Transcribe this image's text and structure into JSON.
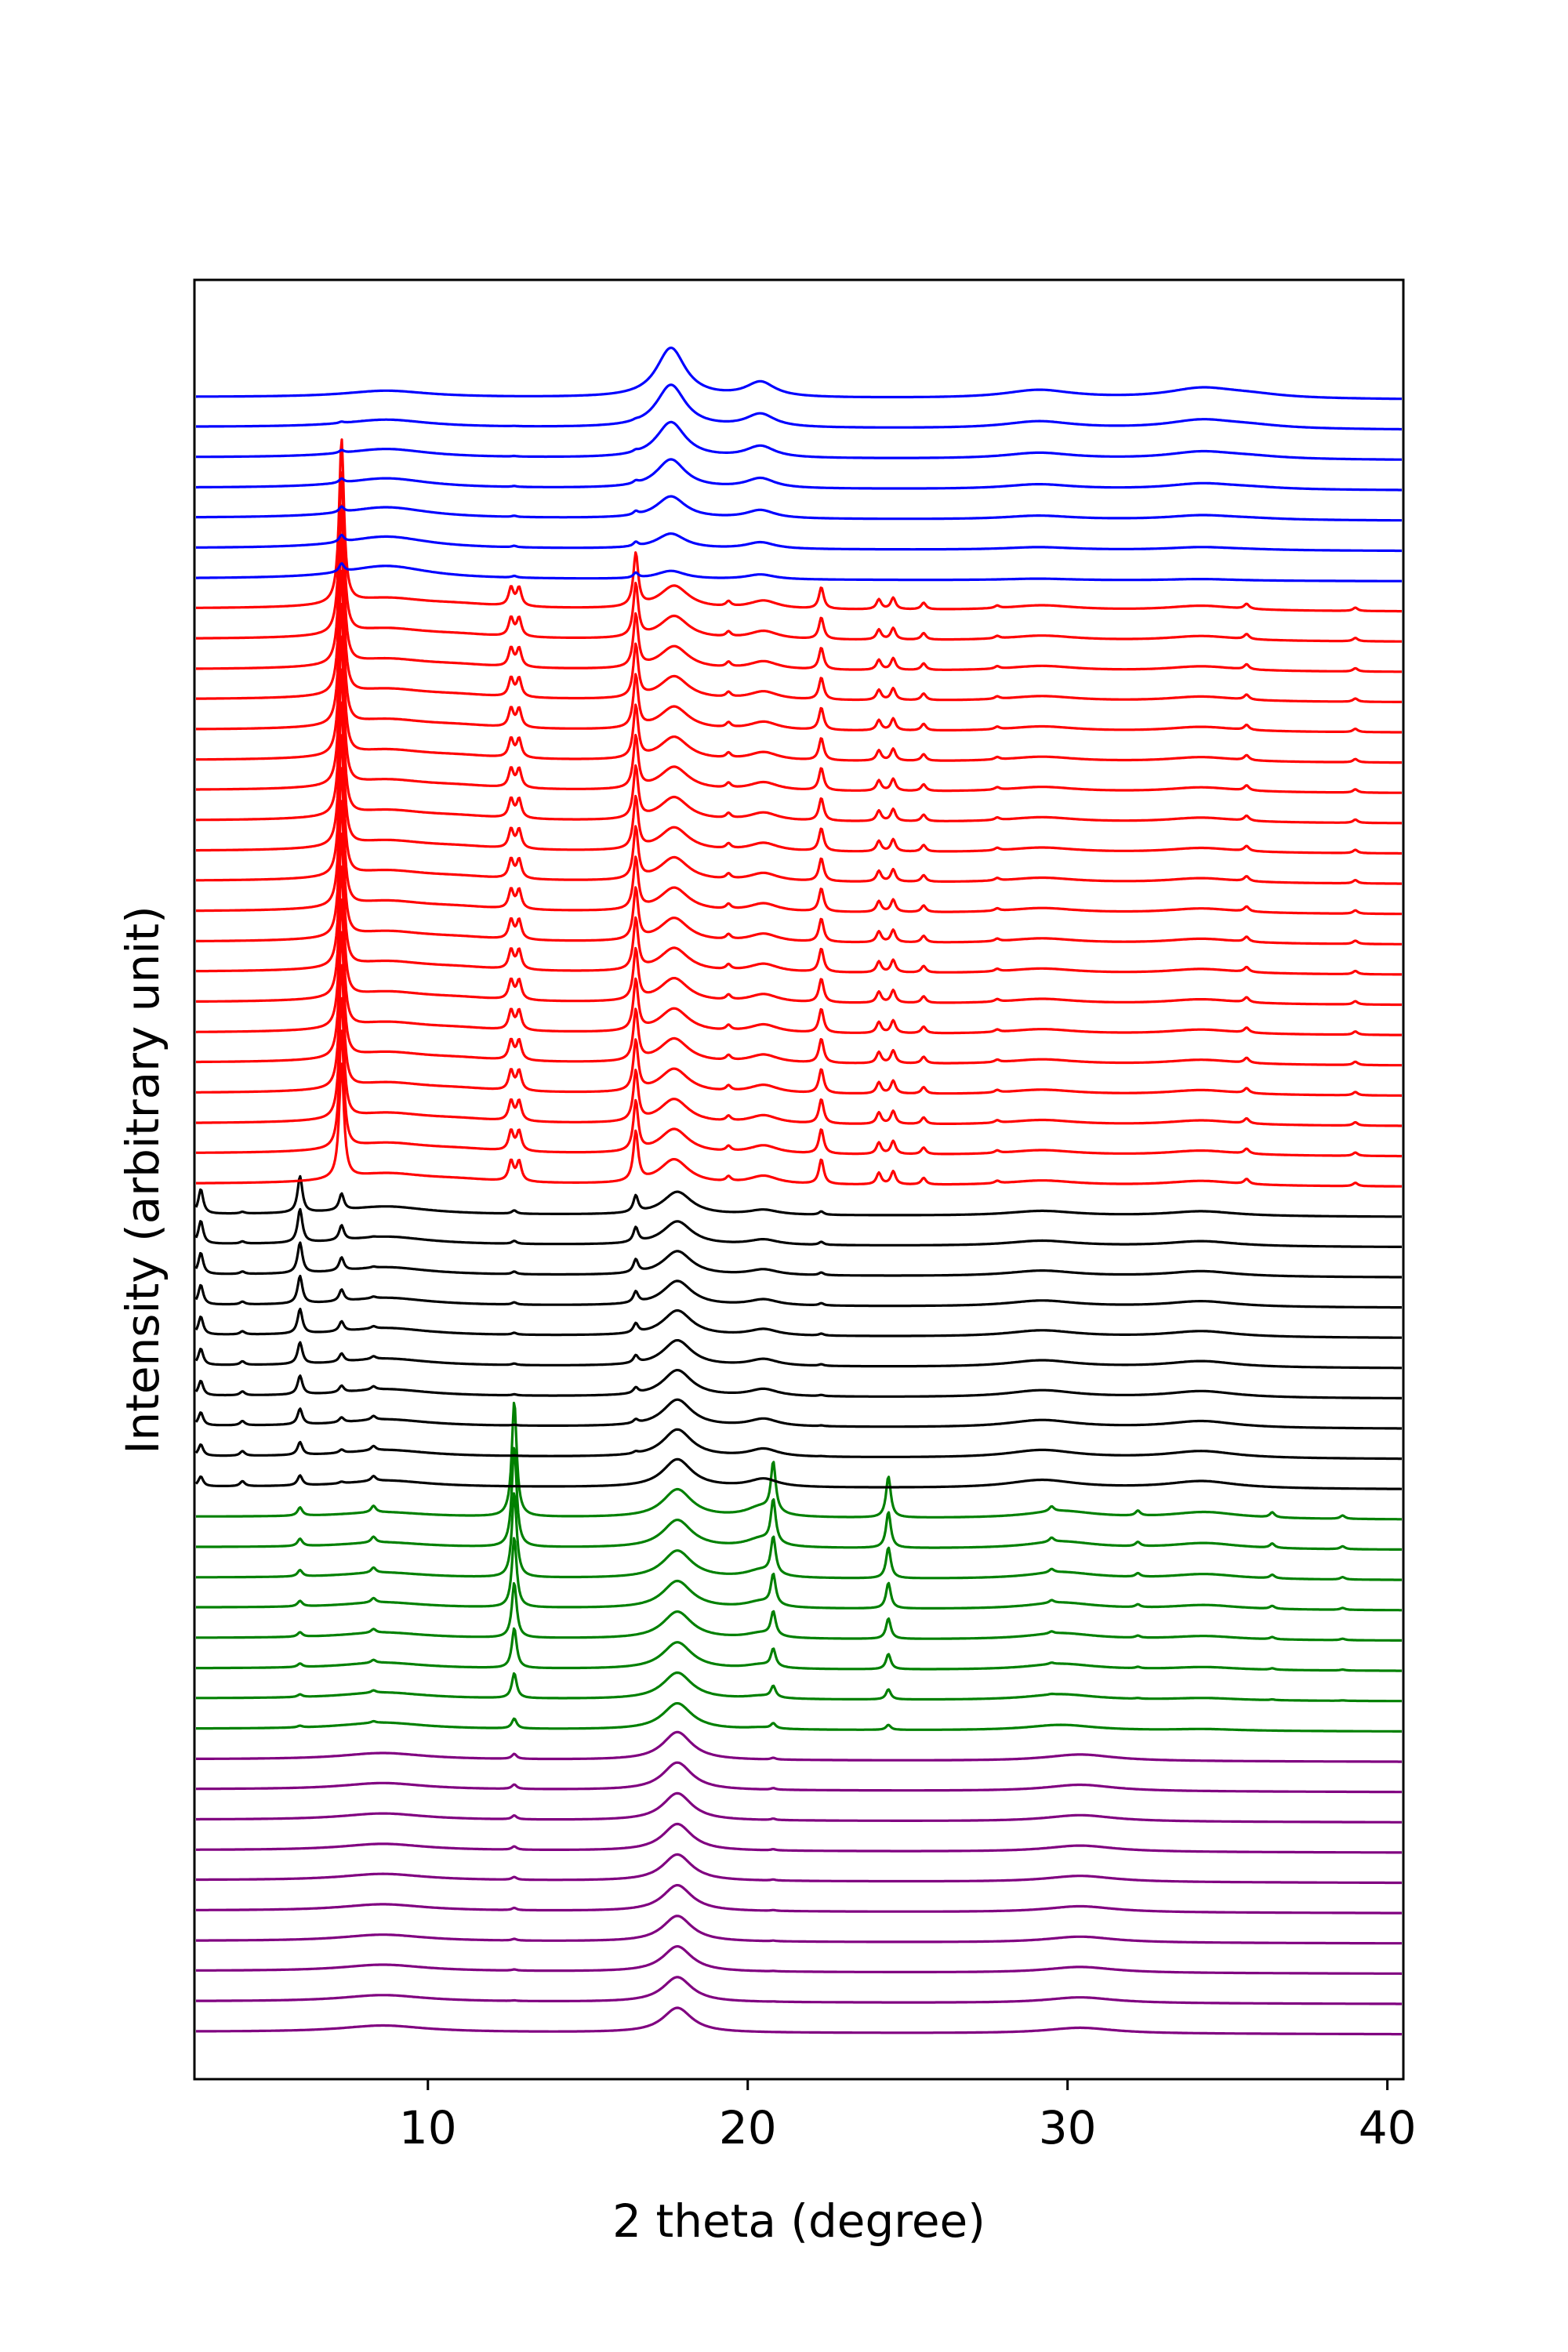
{
  "chart_data": {
    "type": "line",
    "title": "",
    "xlabel": "2 theta (degree)",
    "ylabel": "Intensity (arbitrary unit)",
    "xlim": [
      2.7,
      40.5
    ],
    "xticks": [
      10,
      20,
      30,
      40
    ],
    "yticks": [],
    "grid": false,
    "legend": "none",
    "stacking": "vertically offset waterfall, bottom (purple) to top (blue)",
    "colors": {
      "purple": "#800080",
      "green": "#008000",
      "black": "#000000",
      "red": "#ff0000",
      "blue": "#0000ff"
    },
    "groups": [
      {
        "color": "purple",
        "count": 10,
        "peaks": [
          {
            "x": 8.6,
            "h": [
              0.4,
              0.4
            ]
          },
          {
            "x": 17.8,
            "h": [
              1.5,
              1.7
            ]
          },
          {
            "x": 30.4,
            "h": [
              0.35,
              0.4
            ]
          }
        ],
        "sharp_peaks": [
          {
            "x": 12.7,
            "h": [
              0,
              0.3
            ]
          },
          {
            "x": 20.8,
            "h": [
              0,
              0.1
            ]
          }
        ]
      },
      {
        "color": "green",
        "count": 8,
        "peaks": [
          {
            "x": 8.6,
            "h": [
              0.4,
              0.3
            ]
          },
          {
            "x": 17.8,
            "h": [
              1.6,
              1.7
            ]
          },
          {
            "x": 29.8,
            "h": [
              0.35,
              0.45
            ]
          },
          {
            "x": 34.3,
            "h": [
              0.1,
              0.4
            ]
          },
          {
            "x": 20.4,
            "h": [
              0.1,
              0.6
            ]
          }
        ],
        "sharp_peaks": [
          {
            "x": 12.7,
            "h": [
              0.6,
              7.0
            ]
          },
          {
            "x": 20.8,
            "h": [
              0.3,
              3.0
            ]
          },
          {
            "x": 24.4,
            "h": [
              0.3,
              2.5
            ]
          },
          {
            "x": 6.0,
            "h": [
              0.1,
              0.5
            ]
          },
          {
            "x": 8.3,
            "h": [
              0.1,
              0.4
            ]
          },
          {
            "x": 29.5,
            "h": [
              0.0,
              0.3
            ]
          },
          {
            "x": 32.2,
            "h": [
              0.0,
              0.3
            ]
          },
          {
            "x": 36.4,
            "h": [
              0.0,
              0.3
            ]
          },
          {
            "x": 38.6,
            "h": [
              0.0,
              0.2
            ]
          }
        ]
      },
      {
        "color": "black",
        "count": 10,
        "peaks": [
          {
            "x": 8.7,
            "h": [
              0.4,
              0.5
            ]
          },
          {
            "x": 17.8,
            "h": [
              1.7,
              1.4
            ]
          },
          {
            "x": 20.5,
            "h": [
              0.5,
              0.3
            ]
          },
          {
            "x": 29.2,
            "h": [
              0.5,
              0.3
            ]
          },
          {
            "x": 34.2,
            "h": [
              0.45,
              0.3
            ]
          }
        ],
        "sharp_peaks": [
          {
            "x": 6.0,
            "h": [
              0.6,
              2.2
            ]
          },
          {
            "x": 2.9,
            "h": [
              0.6,
              1.5
            ]
          },
          {
            "x": 7.3,
            "h": [
              0.1,
              1.0
            ]
          },
          {
            "x": 16.5,
            "h": [
              0.0,
              1.0
            ]
          },
          {
            "x": 4.2,
            "h": [
              0.3,
              0.1
            ]
          },
          {
            "x": 8.3,
            "h": [
              0.3,
              0.0
            ]
          },
          {
            "x": 12.7,
            "h": [
              0.0,
              0.2
            ]
          },
          {
            "x": 22.3,
            "h": [
              0.0,
              0.2
            ]
          }
        ]
      },
      {
        "color": "red",
        "count": 20,
        "peaks": [
          {
            "x": 8.7,
            "h": [
              0.6,
              0.6
            ]
          },
          {
            "x": 17.7,
            "h": [
              1.5,
              1.4
            ]
          },
          {
            "x": 20.5,
            "h": [
              0.5,
              0.5
            ]
          },
          {
            "x": 29.2,
            "h": [
              0.3,
              0.3
            ]
          },
          {
            "x": 34.2,
            "h": [
              0.3,
              0.3
            ]
          },
          {
            "x": 11.0,
            "h": [
              0.2,
              0.2
            ]
          }
        ],
        "sharp_peaks": [
          {
            "x": 7.3,
            "h": [
              7.0,
              10.0
            ]
          },
          {
            "x": 16.5,
            "h": [
              3.0,
              3.2
            ]
          },
          {
            "x": 12.6,
            "h": [
              1.2,
              1.1
            ]
          },
          {
            "x": 12.85,
            "h": [
              1.2,
              1.1
            ]
          },
          {
            "x": 22.3,
            "h": [
              1.5,
              1.3
            ]
          },
          {
            "x": 24.1,
            "h": [
              0.7,
              0.6
            ]
          },
          {
            "x": 24.55,
            "h": [
              0.8,
              0.7
            ]
          },
          {
            "x": 25.5,
            "h": [
              0.4,
              0.4
            ]
          },
          {
            "x": 19.4,
            "h": [
              0.3,
              0.3
            ]
          },
          {
            "x": 35.6,
            "h": [
              0.3,
              0.3
            ]
          },
          {
            "x": 39.0,
            "h": [
              0.2,
              0.2
            ]
          },
          {
            "x": 27.8,
            "h": [
              0.15,
              0.15
            ]
          }
        ]
      },
      {
        "color": "blue",
        "count": 7,
        "peaks": [
          {
            "x": 8.7,
            "h": [
              0.8,
              0.4
            ]
          },
          {
            "x": 17.6,
            "h": [
              0.5,
              3.0
            ]
          },
          {
            "x": 20.4,
            "h": [
              0.3,
              0.9
            ]
          },
          {
            "x": 29.1,
            "h": [
              0.1,
              0.5
            ]
          },
          {
            "x": 34.2,
            "h": [
              0.1,
              0.6
            ]
          },
          {
            "x": 35.7,
            "h": [
              0.0,
              0.2
            ]
          }
        ],
        "sharp_peaks": [
          {
            "x": 7.3,
            "h": [
              0.5,
              0.0
            ]
          },
          {
            "x": 16.5,
            "h": [
              0.3,
              0.0
            ]
          },
          {
            "x": 12.7,
            "h": [
              0.1,
              0.0
            ]
          }
        ]
      }
    ]
  }
}
